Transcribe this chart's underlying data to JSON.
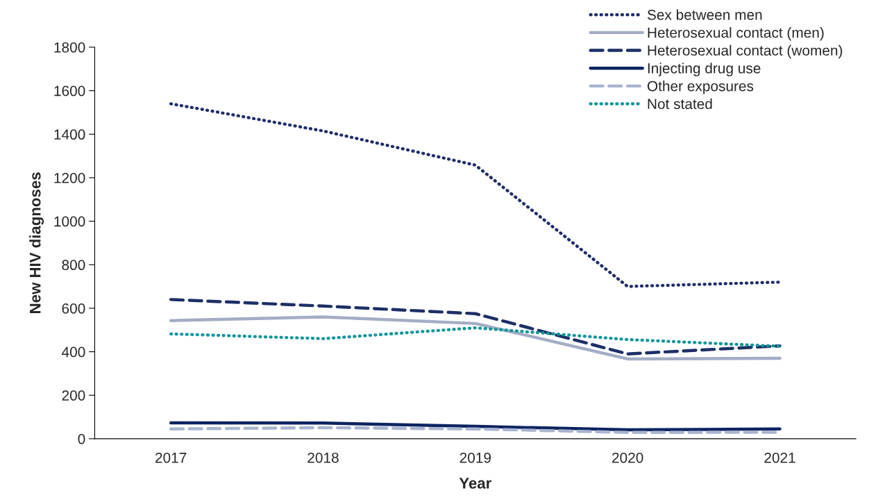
{
  "chart_data": {
    "type": "line",
    "xlabel": "Year",
    "ylabel": "New HIV diagnoses",
    "categories": [
      "2017",
      "2018",
      "2019",
      "2020",
      "2021"
    ],
    "series": [
      {
        "name": "Sex between men",
        "color": "#1f2d6b",
        "line_style": "dotted",
        "values": [
          1540,
          1415,
          1258,
          700,
          720
        ]
      },
      {
        "name": "Heterosexual contact (men)",
        "color": "#a3adc5",
        "line_style": "solid",
        "values": [
          543,
          560,
          530,
          367,
          370
        ]
      },
      {
        "name": "Heterosexual contact (women)",
        "color": "#1c2f66",
        "line_style": "dashed",
        "values": [
          640,
          610,
          575,
          390,
          427
        ]
      },
      {
        "name": "Injecting drug use",
        "color": "#0d2461",
        "line_style": "solid",
        "values": [
          73,
          72,
          57,
          41,
          45
        ]
      },
      {
        "name": "Other exposures",
        "color": "#a9b4cf",
        "line_style": "dashed",
        "values": [
          45,
          51,
          45,
          29,
          30
        ]
      },
      {
        "name": "Not stated",
        "color": "#12959a",
        "line_style": "dotted",
        "values": [
          482,
          460,
          510,
          456,
          425
        ]
      }
    ],
    "ylim": [
      0,
      1800
    ],
    "yticks": [
      0,
      200,
      400,
      600,
      800,
      1000,
      1200,
      1400,
      1600,
      1800
    ],
    "grid": false,
    "legend": "top right"
  }
}
